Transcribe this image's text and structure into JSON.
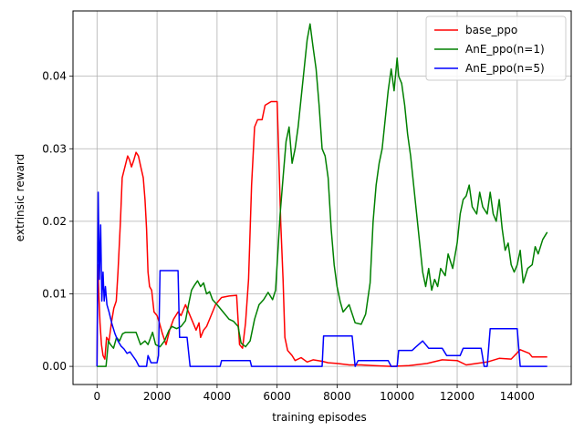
{
  "chart_data": {
    "type": "line",
    "title": "",
    "xlabel": "training episodes",
    "ylabel": "extrinsic reward",
    "xlim": [
      -800,
      15800
    ],
    "ylim": [
      -0.0025,
      0.049
    ],
    "xticks": [
      0,
      2000,
      4000,
      6000,
      8000,
      10000,
      12000,
      14000
    ],
    "xtick_labels": [
      "0",
      "2000",
      "4000",
      "6000",
      "8000",
      "10000",
      "12000",
      "14000"
    ],
    "yticks": [
      0.0,
      0.01,
      0.02,
      0.03,
      0.04
    ],
    "ytick_labels": [
      "0.00",
      "0.01",
      "0.02",
      "0.03",
      "0.04"
    ],
    "grid": true,
    "legend_position": "top-right",
    "series": [
      {
        "name": "base_ppo",
        "color": "#ff0000",
        "points": [
          [
            0,
            0.0
          ],
          [
            30,
            0.014
          ],
          [
            60,
            0.01
          ],
          [
            100,
            0.006
          ],
          [
            150,
            0.003
          ],
          [
            200,
            0.0015
          ],
          [
            260,
            0.001
          ],
          [
            320,
            0.004
          ],
          [
            400,
            0.0035
          ],
          [
            480,
            0.006
          ],
          [
            560,
            0.008
          ],
          [
            640,
            0.009
          ],
          [
            700,
            0.013
          ],
          [
            780,
            0.02
          ],
          [
            840,
            0.026
          ],
          [
            900,
            0.027
          ],
          [
            960,
            0.028
          ],
          [
            1020,
            0.029
          ],
          [
            1080,
            0.0285
          ],
          [
            1150,
            0.0275
          ],
          [
            1230,
            0.0285
          ],
          [
            1300,
            0.0295
          ],
          [
            1380,
            0.029
          ],
          [
            1460,
            0.0275
          ],
          [
            1540,
            0.026
          ],
          [
            1600,
            0.023
          ],
          [
            1650,
            0.019
          ],
          [
            1700,
            0.013
          ],
          [
            1750,
            0.011
          ],
          [
            1820,
            0.0105
          ],
          [
            1900,
            0.0075
          ],
          [
            2000,
            0.007
          ],
          [
            2080,
            0.006
          ],
          [
            2180,
            0.0045
          ],
          [
            2300,
            0.003
          ],
          [
            2420,
            0.005
          ],
          [
            2550,
            0.0065
          ],
          [
            2700,
            0.0075
          ],
          [
            2800,
            0.007
          ],
          [
            2950,
            0.0085
          ],
          [
            3100,
            0.007
          ],
          [
            3200,
            0.006
          ],
          [
            3300,
            0.005
          ],
          [
            3400,
            0.006
          ],
          [
            3450,
            0.004
          ],
          [
            3550,
            0.005
          ],
          [
            3650,
            0.0055
          ],
          [
            3800,
            0.007
          ],
          [
            3950,
            0.0085
          ],
          [
            4050,
            0.009
          ],
          [
            4150,
            0.0095
          ],
          [
            4400,
            0.0097
          ],
          [
            4650,
            0.0098
          ],
          [
            4750,
            0.003
          ],
          [
            4850,
            0.0025
          ],
          [
            4950,
            0.006
          ],
          [
            5050,
            0.012
          ],
          [
            5150,
            0.025
          ],
          [
            5250,
            0.033
          ],
          [
            5350,
            0.034
          ],
          [
            5500,
            0.034
          ],
          [
            5600,
            0.036
          ],
          [
            5800,
            0.0365
          ],
          [
            6000,
            0.0365
          ],
          [
            6050,
            0.03
          ],
          [
            6120,
            0.02
          ],
          [
            6200,
            0.012
          ],
          [
            6260,
            0.004
          ],
          [
            6350,
            0.0022
          ],
          [
            6500,
            0.0015
          ],
          [
            6600,
            0.0008
          ],
          [
            6800,
            0.0012
          ],
          [
            7000,
            0.0006
          ],
          [
            7200,
            0.0009
          ],
          [
            7500,
            0.0007
          ],
          [
            7700,
            0.0005
          ],
          [
            8000,
            0.0004
          ],
          [
            8400,
            0.0002
          ],
          [
            8800,
            0.0002
          ],
          [
            9200,
            0.0001
          ],
          [
            9800,
            0.0
          ],
          [
            10400,
            0.0001
          ],
          [
            11000,
            0.0004
          ],
          [
            11500,
            0.0009
          ],
          [
            12000,
            0.0008
          ],
          [
            12300,
            0.0002
          ],
          [
            13000,
            0.0006
          ],
          [
            13400,
            0.0011
          ],
          [
            13800,
            0.001
          ],
          [
            14100,
            0.0023
          ],
          [
            14400,
            0.0018
          ],
          [
            14500,
            0.0013
          ],
          [
            15000,
            0.0013
          ]
        ]
      },
      {
        "name": "AnE_ppo(n=1)",
        "color": "#008000",
        "points": [
          [
            0,
            0.0
          ],
          [
            300,
            0.0
          ],
          [
            380,
            0.0035
          ],
          [
            450,
            0.003
          ],
          [
            550,
            0.0025
          ],
          [
            650,
            0.004
          ],
          [
            750,
            0.0035
          ],
          [
            850,
            0.0045
          ],
          [
            950,
            0.0047
          ],
          [
            1100,
            0.0047
          ],
          [
            1300,
            0.0047
          ],
          [
            1450,
            0.003
          ],
          [
            1600,
            0.0035
          ],
          [
            1700,
            0.003
          ],
          [
            1850,
            0.0047
          ],
          [
            1950,
            0.003
          ],
          [
            2100,
            0.0027
          ],
          [
            2250,
            0.0035
          ],
          [
            2400,
            0.005
          ],
          [
            2500,
            0.0055
          ],
          [
            2650,
            0.0052
          ],
          [
            2800,
            0.0055
          ],
          [
            2950,
            0.0063
          ],
          [
            3050,
            0.0085
          ],
          [
            3150,
            0.0105
          ],
          [
            3250,
            0.0112
          ],
          [
            3350,
            0.0118
          ],
          [
            3450,
            0.011
          ],
          [
            3550,
            0.0115
          ],
          [
            3650,
            0.01
          ],
          [
            3750,
            0.0103
          ],
          [
            3850,
            0.0092
          ],
          [
            4000,
            0.0085
          ],
          [
            4200,
            0.0075
          ],
          [
            4400,
            0.0065
          ],
          [
            4550,
            0.0062
          ],
          [
            4700,
            0.0055
          ],
          [
            4800,
            0.0032
          ],
          [
            4950,
            0.0027
          ],
          [
            5100,
            0.0035
          ],
          [
            5250,
            0.0065
          ],
          [
            5400,
            0.0085
          ],
          [
            5550,
            0.0092
          ],
          [
            5700,
            0.0102
          ],
          [
            5850,
            0.0092
          ],
          [
            5950,
            0.0105
          ],
          [
            6100,
            0.021
          ],
          [
            6200,
            0.026
          ],
          [
            6300,
            0.031
          ],
          [
            6400,
            0.033
          ],
          [
            6500,
            0.028
          ],
          [
            6600,
            0.03
          ],
          [
            6700,
            0.033
          ],
          [
            6800,
            0.037
          ],
          [
            6900,
            0.041
          ],
          [
            7000,
            0.045
          ],
          [
            7100,
            0.0472
          ],
          [
            7200,
            0.044
          ],
          [
            7300,
            0.041
          ],
          [
            7400,
            0.036
          ],
          [
            7500,
            0.03
          ],
          [
            7600,
            0.029
          ],
          [
            7700,
            0.026
          ],
          [
            7800,
            0.019
          ],
          [
            7900,
            0.014
          ],
          [
            8000,
            0.011
          ],
          [
            8100,
            0.009
          ],
          [
            8200,
            0.0075
          ],
          [
            8400,
            0.0085
          ],
          [
            8600,
            0.006
          ],
          [
            8800,
            0.0058
          ],
          [
            8950,
            0.0072
          ],
          [
            9100,
            0.0115
          ],
          [
            9200,
            0.02
          ],
          [
            9300,
            0.025
          ],
          [
            9400,
            0.028
          ],
          [
            9500,
            0.03
          ],
          [
            9600,
            0.034
          ],
          [
            9700,
            0.038
          ],
          [
            9800,
            0.041
          ],
          [
            9900,
            0.038
          ],
          [
            10000,
            0.0425
          ],
          [
            10050,
            0.04
          ],
          [
            10150,
            0.039
          ],
          [
            10250,
            0.036
          ],
          [
            10350,
            0.032
          ],
          [
            10450,
            0.029
          ],
          [
            10550,
            0.025
          ],
          [
            10650,
            0.021
          ],
          [
            10750,
            0.017
          ],
          [
            10850,
            0.013
          ],
          [
            10950,
            0.011
          ],
          [
            11050,
            0.0135
          ],
          [
            11150,
            0.0105
          ],
          [
            11250,
            0.012
          ],
          [
            11350,
            0.011
          ],
          [
            11450,
            0.0135
          ],
          [
            11600,
            0.0125
          ],
          [
            11700,
            0.0155
          ],
          [
            11850,
            0.0135
          ],
          [
            12000,
            0.017
          ],
          [
            12100,
            0.021
          ],
          [
            12200,
            0.023
          ],
          [
            12300,
            0.0235
          ],
          [
            12400,
            0.025
          ],
          [
            12500,
            0.022
          ],
          [
            12650,
            0.021
          ],
          [
            12750,
            0.024
          ],
          [
            12850,
            0.022
          ],
          [
            13000,
            0.021
          ],
          [
            13100,
            0.024
          ],
          [
            13200,
            0.021
          ],
          [
            13300,
            0.02
          ],
          [
            13400,
            0.023
          ],
          [
            13500,
            0.019
          ],
          [
            13600,
            0.016
          ],
          [
            13700,
            0.017
          ],
          [
            13800,
            0.014
          ],
          [
            13900,
            0.013
          ],
          [
            14000,
            0.014
          ],
          [
            14100,
            0.016
          ],
          [
            14200,
            0.0115
          ],
          [
            14350,
            0.0135
          ],
          [
            14500,
            0.014
          ],
          [
            14600,
            0.0165
          ],
          [
            14700,
            0.0155
          ],
          [
            14850,
            0.0175
          ],
          [
            15000,
            0.0185
          ]
        ]
      },
      {
        "name": "AnE_ppo(n=5)",
        "color": "#0000ff",
        "points": [
          [
            0,
            0.0
          ],
          [
            40,
            0.024
          ],
          [
            80,
            0.012
          ],
          [
            120,
            0.0195
          ],
          [
            160,
            0.009
          ],
          [
            200,
            0.013
          ],
          [
            240,
            0.009
          ],
          [
            280,
            0.011
          ],
          [
            330,
            0.0085
          ],
          [
            400,
            0.0075
          ],
          [
            500,
            0.0058
          ],
          [
            600,
            0.0045
          ],
          [
            700,
            0.0035
          ],
          [
            800,
            0.0028
          ],
          [
            900,
            0.0024
          ],
          [
            1000,
            0.0018
          ],
          [
            1100,
            0.002
          ],
          [
            1200,
            0.0014
          ],
          [
            1300,
            0.0008
          ],
          [
            1400,
            0.0
          ],
          [
            1650,
            0.0
          ],
          [
            1700,
            0.0015
          ],
          [
            1800,
            0.0005
          ],
          [
            2000,
            0.0005
          ],
          [
            2050,
            0.0015
          ],
          [
            2100,
            0.0132
          ],
          [
            2700,
            0.0132
          ],
          [
            2750,
            0.004
          ],
          [
            3000,
            0.004
          ],
          [
            3100,
            0.0
          ],
          [
            4100,
            0.0
          ],
          [
            4150,
            0.0008
          ],
          [
            5100,
            0.0008
          ],
          [
            5150,
            0.0
          ],
          [
            7500,
            0.0
          ],
          [
            7550,
            0.0042
          ],
          [
            8500,
            0.0042
          ],
          [
            8600,
            0.0
          ],
          [
            8700,
            0.0008
          ],
          [
            9700,
            0.0008
          ],
          [
            9800,
            0.0
          ],
          [
            10000,
            0.0
          ],
          [
            10050,
            0.0022
          ],
          [
            10500,
            0.0022
          ],
          [
            10600,
            0.0026
          ],
          [
            10850,
            0.0035
          ],
          [
            11050,
            0.0025
          ],
          [
            11500,
            0.0025
          ],
          [
            11650,
            0.0015
          ],
          [
            12100,
            0.0015
          ],
          [
            12200,
            0.0025
          ],
          [
            12800,
            0.0025
          ],
          [
            12900,
            0.0
          ],
          [
            13000,
            0.0
          ],
          [
            13100,
            0.0052
          ],
          [
            14000,
            0.0052
          ],
          [
            14100,
            0.0
          ],
          [
            15000,
            0.0
          ]
        ]
      }
    ]
  }
}
